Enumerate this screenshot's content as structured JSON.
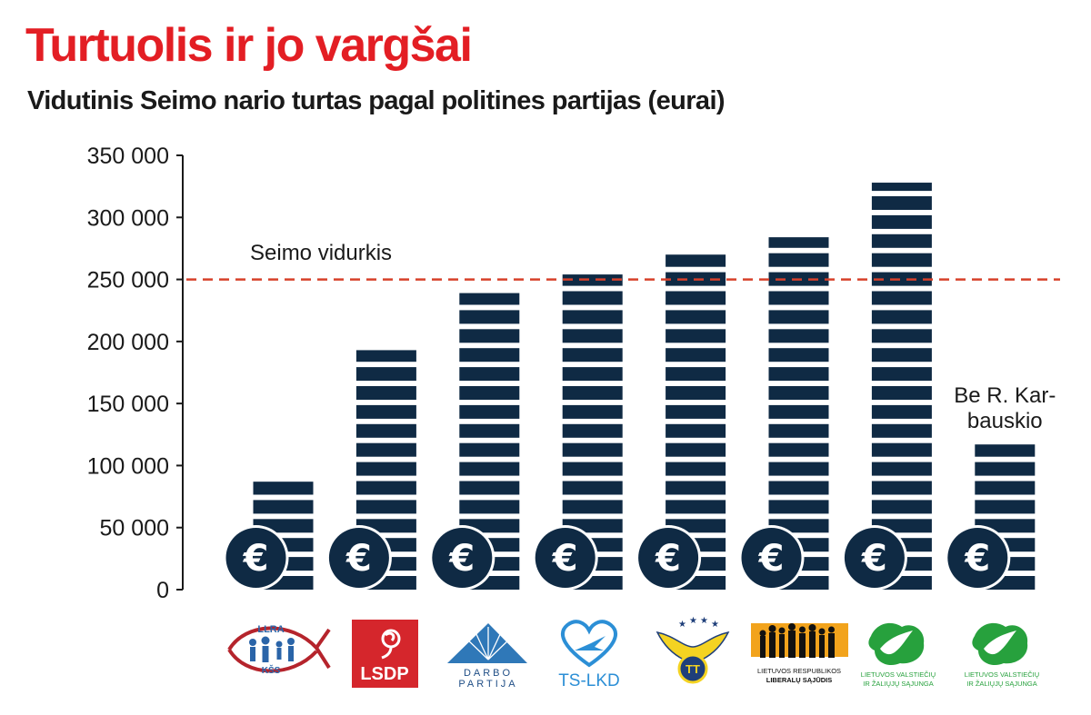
{
  "colors": {
    "title": "#e31e24",
    "text": "#1a1a1a",
    "bar": "#0f2a44",
    "average_line": "#d7402a"
  },
  "icons": {
    "coin": "euro-coin-icon"
  },
  "chart_data": {
    "type": "bar",
    "title": "Turtuolis ir jo vargšai",
    "subtitle": "Vidutinis Seimo nario turtas pagal politines partijas (eurai)",
    "xlabel": "",
    "ylabel": "",
    "ylim": [
      0,
      350000
    ],
    "yticks": [
      0,
      50000,
      100000,
      150000,
      200000,
      250000,
      300000,
      350000
    ],
    "ytick_labels": [
      "0",
      "50 000",
      "100 000",
      "150 000",
      "200 000",
      "250 000",
      "300 000",
      "350 000"
    ],
    "categories": [
      "LLRA-KŠS",
      "LSDP",
      "Darbo partija",
      "TS-LKD",
      "TT",
      "Liberalų sąjūdis",
      "LVŽS",
      "LVŽS"
    ],
    "values": [
      87000,
      193000,
      239000,
      254000,
      270000,
      284000,
      328000,
      117000
    ],
    "average": {
      "label": "Seimo vidurkis",
      "value": 250000
    },
    "annotations": [
      {
        "category_index": 7,
        "text": [
          "Be R. Kar-",
          "bauskio"
        ]
      }
    ],
    "grid": false,
    "legend": "none"
  },
  "logos": {
    "llra": {
      "top": "LLRA",
      "bottom": "KŠS"
    },
    "lsdp": {
      "text": "LSDP"
    },
    "darbo": {
      "line1": "DARBO",
      "line2": "PARTIJA"
    },
    "tslkd": {
      "text": "TS-LKD"
    },
    "tt": {
      "text": "TT"
    },
    "lrls": {
      "line1": "LIETUVOS  RESPUBLIKOS",
      "line2": "LIBERALŲ  SĄJŪDIS"
    },
    "lvzs1": {
      "line1": "LIETUVOS VALSTIEČIŲ",
      "line2": "IR ŽALIŲJŲ SĄJUNGA"
    },
    "lvzs2": {
      "line1": "LIETUVOS VALSTIEČIŲ",
      "line2": "IR ŽALIŲJŲ SĄJUNGA"
    }
  }
}
